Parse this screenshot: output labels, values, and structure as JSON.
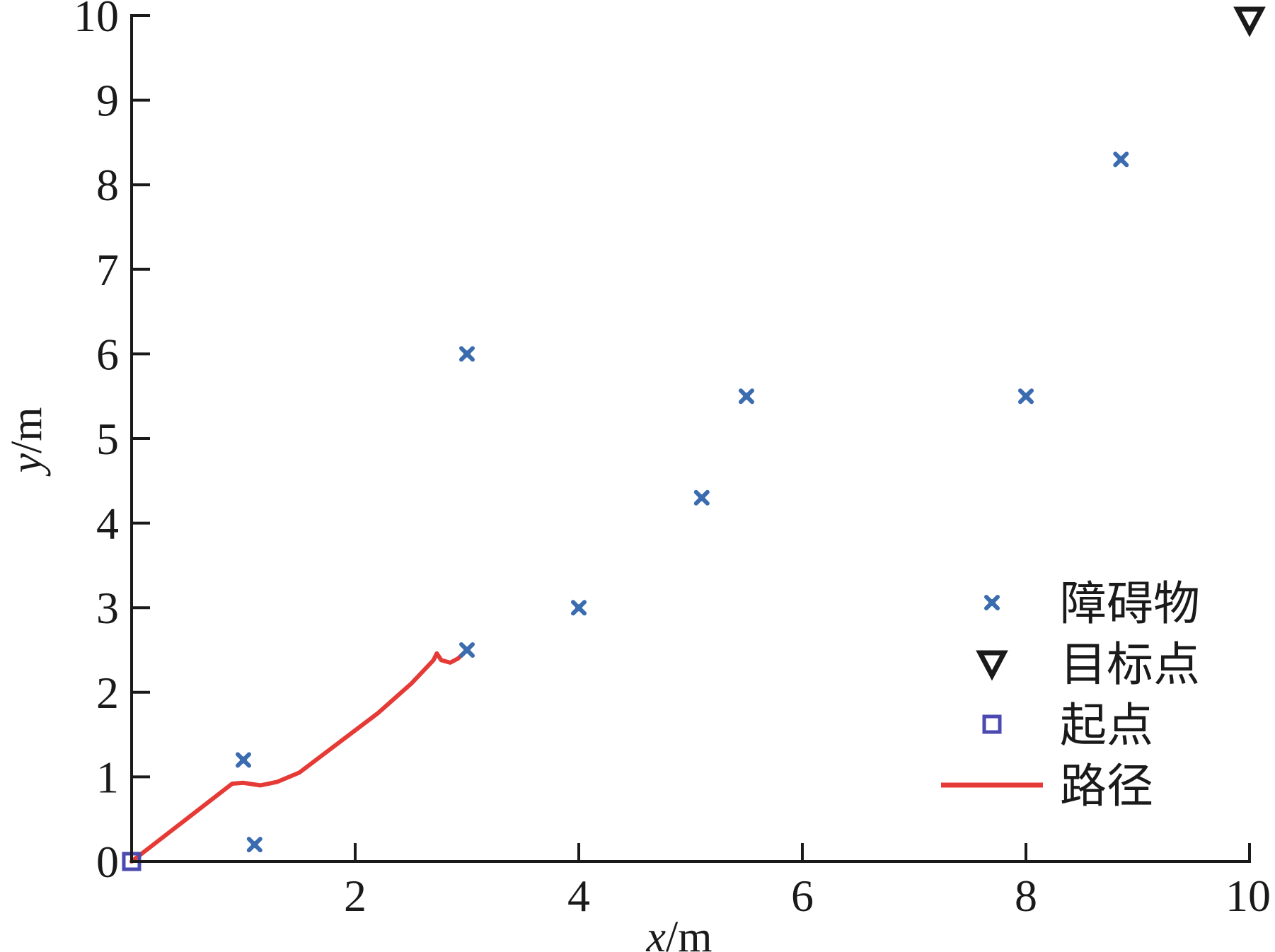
{
  "chart_data": {
    "type": "scatter",
    "xlabel": {
      "var": "x",
      "unit": "/m"
    },
    "ylabel": {
      "var": "y",
      "unit": "/m"
    },
    "xlim": [
      0,
      10
    ],
    "ylim": [
      0,
      10
    ],
    "x_ticks": [
      2,
      4,
      6,
      8,
      10
    ],
    "y_ticks": [
      0,
      1,
      2,
      3,
      4,
      5,
      6,
      7,
      8,
      9,
      10
    ],
    "legend_position": "bottom-right",
    "series": [
      {
        "name": "障碍物",
        "kind": "scatter",
        "marker": "x-icon",
        "color": "#3b6cb0",
        "points": [
          {
            "x": 1.0,
            "y": 1.2
          },
          {
            "x": 1.1,
            "y": 0.2
          },
          {
            "x": 3.0,
            "y": 6.0
          },
          {
            "x": 3.0,
            "y": 2.5
          },
          {
            "x": 4.0,
            "y": 3.0
          },
          {
            "x": 5.1,
            "y": 4.3
          },
          {
            "x": 5.5,
            "y": 5.5
          },
          {
            "x": 8.0,
            "y": 5.5
          },
          {
            "x": 8.85,
            "y": 8.3
          }
        ]
      },
      {
        "name": "目标点",
        "kind": "scatter",
        "marker": "triangle-down-icon",
        "color": "#1a1a1a",
        "points": [
          {
            "x": 10.0,
            "y": 10.0
          }
        ]
      },
      {
        "name": "起点",
        "kind": "scatter",
        "marker": "square-icon",
        "color": "#4a4ab0",
        "points": [
          {
            "x": 0.0,
            "y": 0.0
          }
        ]
      },
      {
        "name": "路径",
        "kind": "line",
        "color": "#e53a35",
        "points": [
          {
            "x": 0.0,
            "y": 0.0
          },
          {
            "x": 0.9,
            "y": 0.92
          },
          {
            "x": 1.0,
            "y": 0.93
          },
          {
            "x": 1.15,
            "y": 0.9
          },
          {
            "x": 1.3,
            "y": 0.94
          },
          {
            "x": 1.5,
            "y": 1.05
          },
          {
            "x": 1.8,
            "y": 1.35
          },
          {
            "x": 2.2,
            "y": 1.75
          },
          {
            "x": 2.5,
            "y": 2.1
          },
          {
            "x": 2.7,
            "y": 2.38
          },
          {
            "x": 2.73,
            "y": 2.46
          },
          {
            "x": 2.77,
            "y": 2.38
          },
          {
            "x": 2.85,
            "y": 2.35
          },
          {
            "x": 2.92,
            "y": 2.4
          },
          {
            "x": 3.0,
            "y": 2.5
          }
        ]
      }
    ]
  }
}
